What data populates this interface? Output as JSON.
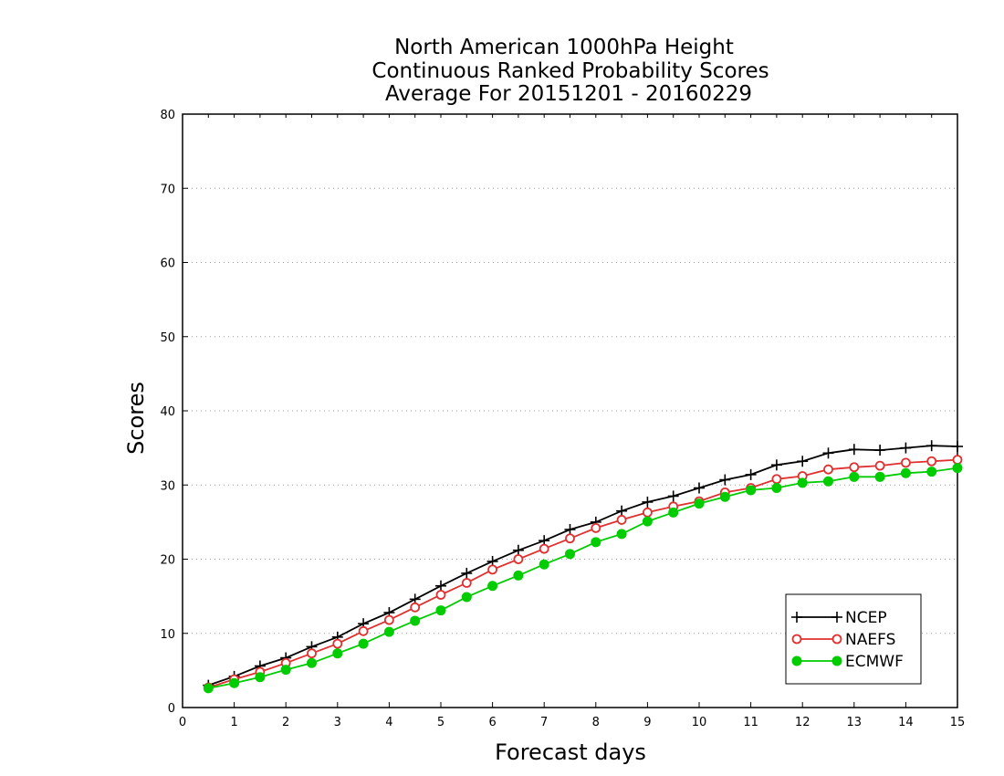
{
  "chart_data": {
    "type": "line",
    "title_lines": [
      "North American 1000hPa Height",
      "Continuous Ranked Probability Scores",
      "Average For 20151201 - 20160229"
    ],
    "xlabel": "Forecast days",
    "ylabel": "Scores",
    "xlim": [
      0,
      15
    ],
    "ylim": [
      0,
      80
    ],
    "x_ticks": [
      0,
      1,
      2,
      3,
      4,
      5,
      6,
      7,
      8,
      9,
      10,
      11,
      12,
      13,
      14,
      15
    ],
    "y_ticks": [
      0,
      10,
      20,
      30,
      40,
      50,
      60,
      70,
      80
    ],
    "grid": "horizontal dotted",
    "legend_position": "bottom-right",
    "x": [
      0.5,
      1.0,
      1.5,
      2.0,
      2.5,
      3.0,
      3.5,
      4.0,
      4.5,
      5.0,
      5.5,
      6.0,
      6.5,
      7.0,
      7.5,
      8.0,
      8.5,
      9.0,
      9.5,
      10.0,
      10.5,
      11.0,
      11.5,
      12.0,
      12.5,
      13.0,
      13.5,
      14.0,
      14.5,
      15.0
    ],
    "series": [
      {
        "name": "NCEP",
        "color": "#000000",
        "marker": "plus",
        "values": [
          3.0,
          4.2,
          5.6,
          6.7,
          8.2,
          9.5,
          11.3,
          12.8,
          14.6,
          16.4,
          18.1,
          19.7,
          21.2,
          22.5,
          24.0,
          25.0,
          26.5,
          27.7,
          28.5,
          29.6,
          30.7,
          31.4,
          32.7,
          33.2,
          34.3,
          34.8,
          34.7,
          35.0,
          35.3,
          35.2
        ]
      },
      {
        "name": "NAEFS",
        "color": "#e03030",
        "marker": "open-circle",
        "values": [
          2.7,
          3.8,
          4.8,
          6.0,
          7.3,
          8.6,
          10.3,
          11.8,
          13.5,
          15.2,
          16.8,
          18.6,
          20.0,
          21.4,
          22.8,
          24.2,
          25.3,
          26.3,
          27.1,
          27.8,
          29.0,
          29.6,
          30.8,
          31.2,
          32.1,
          32.4,
          32.6,
          33.0,
          33.2,
          33.4
        ]
      },
      {
        "name": "ECMWF",
        "color": "#00cc00",
        "marker": "filled-circle",
        "values": [
          2.6,
          3.3,
          4.1,
          5.1,
          6.0,
          7.3,
          8.6,
          10.2,
          11.7,
          13.1,
          14.9,
          16.4,
          17.8,
          19.3,
          20.7,
          22.3,
          23.4,
          25.1,
          26.3,
          27.5,
          28.4,
          29.3,
          29.6,
          30.3,
          30.5,
          31.1,
          31.1,
          31.6,
          31.8,
          32.3
        ]
      }
    ]
  }
}
